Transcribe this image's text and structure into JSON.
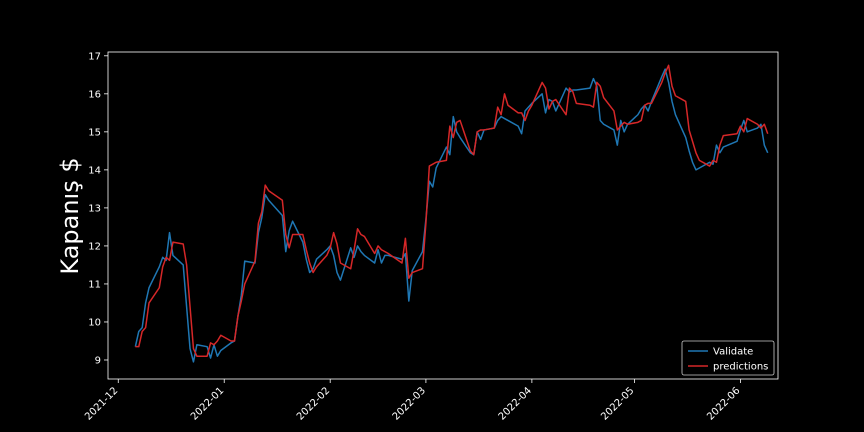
{
  "chart_data": {
    "type": "line",
    "ylabel": "Kapanış $",
    "xlabel": "",
    "title": "",
    "x_ticks": [
      "2021-12",
      "2022-01",
      "2022-02",
      "2022-03",
      "2022-04",
      "2022-05",
      "2022-06"
    ],
    "y_ticks": [
      9,
      10,
      11,
      12,
      13,
      14,
      15,
      16,
      17
    ],
    "ylim": [
      8.5,
      17.1
    ],
    "xlim": [
      "2021-11-28",
      "2022-06-12"
    ],
    "legend_position": "lower-right",
    "colors": {
      "validate": "#1f77b4",
      "predictions": "#d62728",
      "background": "#000000",
      "axes": "#ffffff"
    },
    "series": [
      {
        "name": "Validate",
        "color": "#1f77b4",
        "points": [
          [
            "2021-12-06",
            9.35
          ],
          [
            "2021-12-07",
            9.75
          ],
          [
            "2021-12-08",
            9.85
          ],
          [
            "2021-12-09",
            10.5
          ],
          [
            "2021-12-10",
            10.9
          ],
          [
            "2021-12-13",
            11.45
          ],
          [
            "2021-12-14",
            11.7
          ],
          [
            "2021-12-15",
            11.62
          ],
          [
            "2021-12-16",
            12.35
          ],
          [
            "2021-12-17",
            11.75
          ],
          [
            "2021-12-20",
            11.5
          ],
          [
            "2021-12-21",
            10.4
          ],
          [
            "2021-12-22",
            9.3
          ],
          [
            "2021-12-23",
            8.95
          ],
          [
            "2021-12-24",
            9.4
          ],
          [
            "2021-12-27",
            9.35
          ],
          [
            "2021-12-28",
            9.05
          ],
          [
            "2021-12-29",
            9.4
          ],
          [
            "2021-12-30",
            9.1
          ],
          [
            "2021-12-31",
            9.25
          ],
          [
            "2022-01-03",
            9.45
          ],
          [
            "2022-01-04",
            9.5
          ],
          [
            "2022-01-05",
            10.15
          ],
          [
            "2022-01-06",
            10.7
          ],
          [
            "2022-01-07",
            11.6
          ],
          [
            "2022-01-10",
            11.55
          ],
          [
            "2022-01-11",
            12.35
          ],
          [
            "2022-01-12",
            12.75
          ],
          [
            "2022-01-13",
            13.35
          ],
          [
            "2022-01-14",
            13.2
          ],
          [
            "2022-01-18",
            12.8
          ],
          [
            "2022-01-19",
            11.85
          ],
          [
            "2022-01-20",
            12.4
          ],
          [
            "2022-01-21",
            12.65
          ],
          [
            "2022-01-24",
            12.1
          ],
          [
            "2022-01-25",
            11.65
          ],
          [
            "2022-01-26",
            11.3
          ],
          [
            "2022-01-27",
            11.4
          ],
          [
            "2022-01-28",
            11.65
          ],
          [
            "2022-01-31",
            11.9
          ],
          [
            "2022-02-01",
            12.0
          ],
          [
            "2022-02-02",
            11.75
          ],
          [
            "2022-02-03",
            11.3
          ],
          [
            "2022-02-04",
            11.1
          ],
          [
            "2022-02-07",
            11.95
          ],
          [
            "2022-02-08",
            11.7
          ],
          [
            "2022-02-09",
            12.0
          ],
          [
            "2022-02-10",
            11.85
          ],
          [
            "2022-02-11",
            11.75
          ],
          [
            "2022-02-14",
            11.55
          ],
          [
            "2022-02-15",
            11.9
          ],
          [
            "2022-02-16",
            11.55
          ],
          [
            "2022-02-17",
            11.75
          ],
          [
            "2022-02-18",
            11.75
          ],
          [
            "2022-02-22",
            11.65
          ],
          [
            "2022-02-23",
            11.8
          ],
          [
            "2022-02-24",
            10.55
          ],
          [
            "2022-02-25",
            11.35
          ],
          [
            "2022-02-28",
            11.85
          ],
          [
            "2022-03-01",
            12.7
          ],
          [
            "2022-03-02",
            13.7
          ],
          [
            "2022-03-03",
            13.55
          ],
          [
            "2022-03-04",
            14.05
          ],
          [
            "2022-03-07",
            14.6
          ],
          [
            "2022-03-08",
            14.4
          ],
          [
            "2022-03-09",
            15.4
          ],
          [
            "2022-03-10",
            15.0
          ],
          [
            "2022-03-11",
            14.85
          ],
          [
            "2022-03-14",
            14.45
          ],
          [
            "2022-03-15",
            14.4
          ],
          [
            "2022-03-16",
            15.0
          ],
          [
            "2022-03-17",
            14.8
          ],
          [
            "2022-03-18",
            15.05
          ],
          [
            "2022-03-21",
            15.1
          ],
          [
            "2022-03-22",
            15.3
          ],
          [
            "2022-03-23",
            15.4
          ],
          [
            "2022-03-24",
            15.35
          ],
          [
            "2022-03-25",
            15.3
          ],
          [
            "2022-03-28",
            15.15
          ],
          [
            "2022-03-29",
            14.95
          ],
          [
            "2022-03-30",
            15.55
          ],
          [
            "2022-03-31",
            15.65
          ],
          [
            "2022-04-01",
            15.75
          ],
          [
            "2022-04-04",
            16.0
          ],
          [
            "2022-04-05",
            15.5
          ],
          [
            "2022-04-06",
            15.85
          ],
          [
            "2022-04-07",
            15.8
          ],
          [
            "2022-04-08",
            15.55
          ],
          [
            "2022-04-11",
            16.15
          ],
          [
            "2022-04-12",
            16.05
          ],
          [
            "2022-04-13",
            16.1
          ],
          [
            "2022-04-14",
            16.1
          ],
          [
            "2022-04-18",
            16.15
          ],
          [
            "2022-04-19",
            16.4
          ],
          [
            "2022-04-20",
            16.2
          ],
          [
            "2022-04-21",
            15.3
          ],
          [
            "2022-04-22",
            15.2
          ],
          [
            "2022-04-25",
            15.05
          ],
          [
            "2022-04-26",
            14.65
          ],
          [
            "2022-04-27",
            15.3
          ],
          [
            "2022-04-28",
            15.0
          ],
          [
            "2022-04-29",
            15.2
          ],
          [
            "2022-05-02",
            15.45
          ],
          [
            "2022-05-03",
            15.6
          ],
          [
            "2022-05-04",
            15.7
          ],
          [
            "2022-05-05",
            15.55
          ],
          [
            "2022-05-06",
            15.8
          ],
          [
            "2022-05-09",
            16.45
          ],
          [
            "2022-05-10",
            16.65
          ],
          [
            "2022-05-11",
            16.3
          ],
          [
            "2022-05-12",
            15.8
          ],
          [
            "2022-05-13",
            15.45
          ],
          [
            "2022-05-16",
            14.85
          ],
          [
            "2022-05-17",
            14.5
          ],
          [
            "2022-05-18",
            14.2
          ],
          [
            "2022-05-19",
            14.0
          ],
          [
            "2022-05-20",
            14.05
          ],
          [
            "2022-05-23",
            14.2
          ],
          [
            "2022-05-24",
            14.15
          ],
          [
            "2022-05-25",
            14.65
          ],
          [
            "2022-05-26",
            14.45
          ],
          [
            "2022-05-27",
            14.6
          ],
          [
            "2022-05-31",
            14.75
          ],
          [
            "2022-06-01",
            15.05
          ],
          [
            "2022-06-02",
            15.3
          ],
          [
            "2022-06-03",
            15.0
          ],
          [
            "2022-06-06",
            15.1
          ],
          [
            "2022-06-07",
            15.2
          ],
          [
            "2022-06-08",
            14.65
          ],
          [
            "2022-06-09",
            14.45
          ]
        ]
      },
      {
        "name": "predictions",
        "color": "#d62728",
        "points": [
          [
            "2021-12-06",
            9.35
          ],
          [
            "2021-12-07",
            9.35
          ],
          [
            "2021-12-08",
            9.75
          ],
          [
            "2021-12-09",
            9.85
          ],
          [
            "2021-12-10",
            10.5
          ],
          [
            "2021-12-13",
            10.9
          ],
          [
            "2021-12-14",
            11.45
          ],
          [
            "2021-12-15",
            11.7
          ],
          [
            "2021-12-16",
            11.62
          ],
          [
            "2021-12-17",
            12.1
          ],
          [
            "2021-12-20",
            12.05
          ],
          [
            "2021-12-21",
            11.5
          ],
          [
            "2021-12-22",
            10.4
          ],
          [
            "2021-12-23",
            9.3
          ],
          [
            "2021-12-24",
            9.1
          ],
          [
            "2021-12-27",
            9.1
          ],
          [
            "2021-12-28",
            9.45
          ],
          [
            "2021-12-29",
            9.4
          ],
          [
            "2021-12-30",
            9.5
          ],
          [
            "2021-12-31",
            9.65
          ],
          [
            "2022-01-03",
            9.5
          ],
          [
            "2022-01-04",
            9.5
          ],
          [
            "2022-01-05",
            10.15
          ],
          [
            "2022-01-06",
            10.55
          ],
          [
            "2022-01-07",
            11.0
          ],
          [
            "2022-01-10",
            11.6
          ],
          [
            "2022-01-11",
            12.6
          ],
          [
            "2022-01-12",
            12.9
          ],
          [
            "2022-01-13",
            13.6
          ],
          [
            "2022-01-14",
            13.45
          ],
          [
            "2022-01-18",
            13.2
          ],
          [
            "2022-01-19",
            12.3
          ],
          [
            "2022-01-20",
            11.95
          ],
          [
            "2022-01-21",
            12.3
          ],
          [
            "2022-01-24",
            12.3
          ],
          [
            "2022-01-25",
            11.9
          ],
          [
            "2022-01-26",
            11.55
          ],
          [
            "2022-01-27",
            11.3
          ],
          [
            "2022-01-28",
            11.45
          ],
          [
            "2022-01-31",
            11.75
          ],
          [
            "2022-02-01",
            11.95
          ],
          [
            "2022-02-02",
            12.35
          ],
          [
            "2022-02-03",
            12.05
          ],
          [
            "2022-02-04",
            11.55
          ],
          [
            "2022-02-07",
            11.4
          ],
          [
            "2022-02-08",
            11.9
          ],
          [
            "2022-02-09",
            12.45
          ],
          [
            "2022-02-10",
            12.3
          ],
          [
            "2022-02-11",
            12.25
          ],
          [
            "2022-02-14",
            11.8
          ],
          [
            "2022-02-15",
            12.0
          ],
          [
            "2022-02-16",
            11.9
          ],
          [
            "2022-02-17",
            11.85
          ],
          [
            "2022-02-18",
            11.8
          ],
          [
            "2022-02-22",
            11.55
          ],
          [
            "2022-02-23",
            12.2
          ],
          [
            "2022-02-24",
            11.15
          ],
          [
            "2022-02-25",
            11.3
          ],
          [
            "2022-02-28",
            11.4
          ],
          [
            "2022-03-01",
            12.6
          ],
          [
            "2022-03-02",
            14.1
          ],
          [
            "2022-03-03",
            14.15
          ],
          [
            "2022-03-04",
            14.2
          ],
          [
            "2022-03-07",
            14.25
          ],
          [
            "2022-03-08",
            15.15
          ],
          [
            "2022-03-09",
            14.85
          ],
          [
            "2022-03-10",
            15.25
          ],
          [
            "2022-03-11",
            15.3
          ],
          [
            "2022-03-14",
            14.5
          ],
          [
            "2022-03-15",
            14.4
          ],
          [
            "2022-03-16",
            15.0
          ],
          [
            "2022-03-17",
            15.05
          ],
          [
            "2022-03-18",
            15.05
          ],
          [
            "2022-03-21",
            15.1
          ],
          [
            "2022-03-22",
            15.65
          ],
          [
            "2022-03-23",
            15.45
          ],
          [
            "2022-03-24",
            16.0
          ],
          [
            "2022-03-25",
            15.7
          ],
          [
            "2022-03-28",
            15.5
          ],
          [
            "2022-03-29",
            15.5
          ],
          [
            "2022-03-30",
            15.3
          ],
          [
            "2022-03-31",
            15.55
          ],
          [
            "2022-04-01",
            15.7
          ],
          [
            "2022-04-04",
            16.3
          ],
          [
            "2022-04-05",
            16.15
          ],
          [
            "2022-04-06",
            15.6
          ],
          [
            "2022-04-07",
            15.8
          ],
          [
            "2022-04-08",
            15.85
          ],
          [
            "2022-04-11",
            15.45
          ],
          [
            "2022-04-12",
            16.15
          ],
          [
            "2022-04-13",
            16.05
          ],
          [
            "2022-04-14",
            15.75
          ],
          [
            "2022-04-18",
            15.7
          ],
          [
            "2022-04-19",
            15.65
          ],
          [
            "2022-04-20",
            16.3
          ],
          [
            "2022-04-21",
            16.2
          ],
          [
            "2022-04-22",
            15.9
          ],
          [
            "2022-04-25",
            15.55
          ],
          [
            "2022-04-26",
            15.05
          ],
          [
            "2022-04-27",
            15.15
          ],
          [
            "2022-04-28",
            15.25
          ],
          [
            "2022-04-29",
            15.2
          ],
          [
            "2022-05-02",
            15.25
          ],
          [
            "2022-05-03",
            15.3
          ],
          [
            "2022-05-04",
            15.7
          ],
          [
            "2022-05-05",
            15.75
          ],
          [
            "2022-05-06",
            15.75
          ],
          [
            "2022-05-09",
            16.3
          ],
          [
            "2022-05-10",
            16.55
          ],
          [
            "2022-05-11",
            16.75
          ],
          [
            "2022-05-12",
            16.2
          ],
          [
            "2022-05-13",
            15.95
          ],
          [
            "2022-05-16",
            15.8
          ],
          [
            "2022-05-17",
            15.05
          ],
          [
            "2022-05-18",
            14.75
          ],
          [
            "2022-05-19",
            14.45
          ],
          [
            "2022-05-20",
            14.25
          ],
          [
            "2022-05-23",
            14.1
          ],
          [
            "2022-05-24",
            14.25
          ],
          [
            "2022-05-25",
            14.2
          ],
          [
            "2022-05-26",
            14.65
          ],
          [
            "2022-05-27",
            14.9
          ],
          [
            "2022-05-31",
            14.95
          ],
          [
            "2022-06-01",
            15.15
          ],
          [
            "2022-06-02",
            15.0
          ],
          [
            "2022-06-03",
            15.35
          ],
          [
            "2022-06-06",
            15.2
          ],
          [
            "2022-06-07",
            15.1
          ],
          [
            "2022-06-08",
            15.2
          ],
          [
            "2022-06-09",
            14.95
          ]
        ]
      }
    ]
  }
}
